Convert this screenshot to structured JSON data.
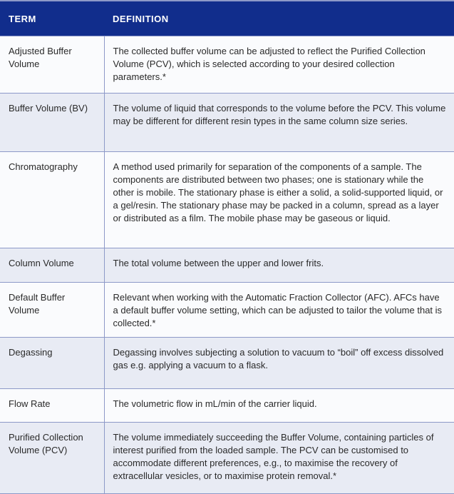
{
  "header": {
    "term": "TERM",
    "definition": "DEFINITION"
  },
  "colors": {
    "header_bg": "#112d8c",
    "row_alt": "#e8ebf4",
    "row": "#fafbfd",
    "border": "#8d99c8"
  },
  "rows": [
    {
      "term": "Adjusted Buffer Volume",
      "definition": "The collected buffer volume can be adjusted to reflect the Purified Collection Volume (PCV), which is selected according to your desired collection parameters.*"
    },
    {
      "term": "Buffer Volume (BV)",
      "definition": "The volume of liquid that corresponds to the volume before the PCV. This volume may be different for different resin types in the same column size series."
    },
    {
      "term": "Chromatography",
      "definition": "A method used primarily for separation of the components of a sample. The components are distributed between two phases; one is stationary while the other is mobile. The stationary phase is either a solid, a solid-supported liquid, or a gel/resin. The stationary phase may be packed in a column, spread as a layer or distributed as a film. The mobile phase may be gaseous or liquid."
    },
    {
      "term": "Column Volume",
      "definition": "The total volume between the upper and lower frits."
    },
    {
      "term": "Default Buffer Volume",
      "definition": "Relevant when working with the Automatic Fraction Collector (AFC). AFCs have a default buffer volume setting, which can be adjusted to tailor the volume that is collected.*"
    },
    {
      "term": "Degassing",
      "definition": "Degassing involves subjecting a solution to vacuum to “boil” off excess dissolved gas e.g. applying a vacuum to a flask."
    },
    {
      "term": "Flow Rate",
      "definition": "The volumetric flow in mL/min of the carrier liquid."
    },
    {
      "term": "Purified Collection Volume (PCV)",
      "definition": "The volume immediately succeeding the Buffer Volume, containing particles of interest purified from the loaded sample. The PCV can be customised to accommodate different preferences, e.g., to maximise the recovery of extracellular vesicles, or to maximise protein removal.*"
    }
  ]
}
